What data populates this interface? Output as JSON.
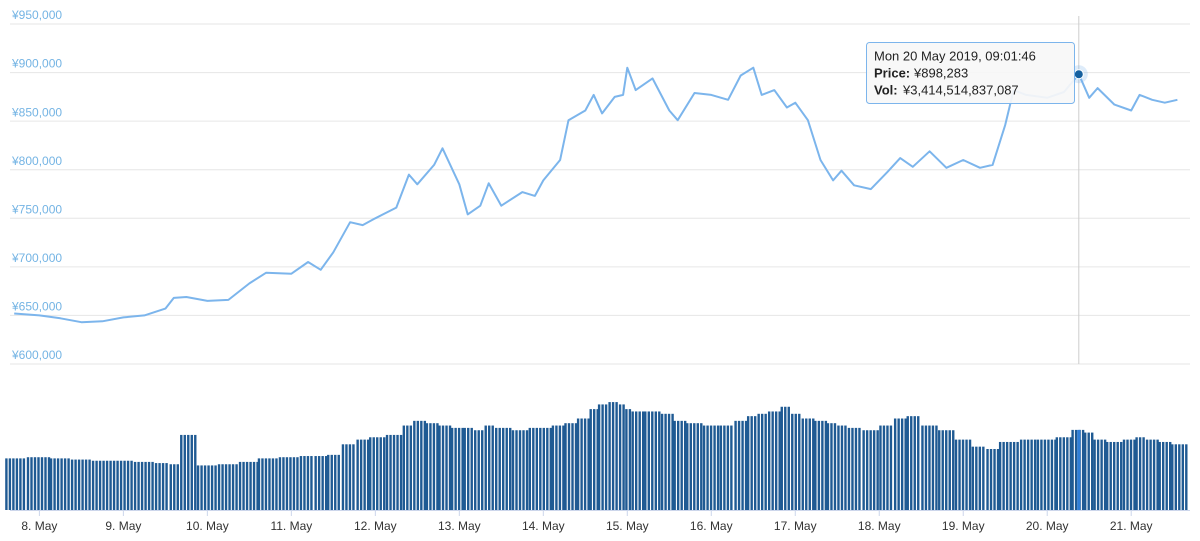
{
  "chart_data": {
    "type": "line",
    "x": [
      7.7,
      8.0,
      8.25,
      8.5,
      8.75,
      9.0,
      9.25,
      9.5,
      9.6,
      9.75,
      10.0,
      10.25,
      10.5,
      10.7,
      11.0,
      11.2,
      11.35,
      11.5,
      11.7,
      11.85,
      12.0,
      12.25,
      12.4,
      12.5,
      12.7,
      12.8,
      13.0,
      13.1,
      13.25,
      13.35,
      13.5,
      13.75,
      13.9,
      14.0,
      14.2,
      14.3,
      14.5,
      14.6,
      14.7,
      14.85,
      14.95,
      15.0,
      15.1,
      15.3,
      15.5,
      15.6,
      15.8,
      16.0,
      16.2,
      16.35,
      16.5,
      16.6,
      16.75,
      16.9,
      17.0,
      17.15,
      17.3,
      17.45,
      17.55,
      17.7,
      17.9,
      18.1,
      18.25,
      18.4,
      18.6,
      18.8,
      19.0,
      19.2,
      19.35,
      19.5,
      19.6,
      19.75,
      20.0,
      20.2,
      20.376,
      20.5,
      20.6,
      20.8,
      21.0,
      21.1,
      21.25,
      21.4,
      21.55
    ],
    "series": [
      {
        "name": "Price",
        "color": "#7cb5ec",
        "values": [
          652000,
          650000,
          647000,
          643000,
          644000,
          648000,
          650000,
          657000,
          668000,
          669000,
          665000,
          666000,
          683000,
          694000,
          693000,
          705000,
          697000,
          715000,
          746000,
          743000,
          750000,
          761000,
          795000,
          785000,
          805000,
          822000,
          785000,
          754000,
          763000,
          786000,
          763000,
          777000,
          773000,
          789000,
          810000,
          851000,
          861000,
          877000,
          858000,
          875000,
          877000,
          905000,
          882000,
          894000,
          861000,
          851000,
          879000,
          877000,
          872000,
          897000,
          905000,
          877000,
          882000,
          864000,
          869000,
          851000,
          810000,
          789000,
          799000,
          784000,
          780000,
          798000,
          812000,
          803000,
          819000,
          802000,
          810000,
          802000,
          805000,
          846000,
          882000,
          877000,
          874000,
          880000,
          898283,
          874000,
          884000,
          867000,
          861000,
          877000,
          872000,
          869000,
          872000
        ]
      },
      {
        "name": "Vol",
        "color": "#1f5a93",
        "axis": "y2",
        "values": [
          2200000000000.0,
          2250000000000.0,
          2200000000000.0,
          2150000000000.0,
          2100000000000.0,
          2100000000000.0,
          2050000000000.0,
          2000000000000.0,
          1950000000000.0,
          3200000000000.0,
          1900000000000.0,
          1950000000000.0,
          2050000000000.0,
          2200000000000.0,
          2250000000000.0,
          2300000000000.0,
          2300000000000.0,
          2350000000000.0,
          2800000000000.0,
          3000000000000.0,
          3100000000000.0,
          3200000000000.0,
          3600000000000.0,
          3800000000000.0,
          3700000000000.0,
          3600000000000.0,
          3500000000000.0,
          3500000000000.0,
          3400000000000.0,
          3600000000000.0,
          3500000000000.0,
          3400000000000.0,
          3500000000000.0,
          3500000000000.0,
          3600000000000.0,
          3700000000000.0,
          3900000000000.0,
          4300000000000.0,
          4500000000000.0,
          4600000000000.0,
          4500000000000.0,
          4300000000000.0,
          4200000000000.0,
          4200000000000.0,
          4100000000000.0,
          3800000000000.0,
          3700000000000.0,
          3600000000000.0,
          3600000000000.0,
          3800000000000.0,
          4000000000000.0,
          4100000000000.0,
          4200000000000.0,
          4400000000000.0,
          4100000000000.0,
          3900000000000.0,
          3800000000000.0,
          3700000000000.0,
          3600000000000.0,
          3500000000000.0,
          3400000000000.0,
          3600000000000.0,
          3900000000000.0,
          4000000000000.0,
          3600000000000.0,
          3400000000000.0,
          3000000000000.0,
          2700000000000.0,
          2600000000000.0,
          2900000000000.0,
          2900000000000.0,
          3000000000000.0,
          3000000000000.0,
          3100000000000.0,
          3414514837087,
          3300000000000.0,
          3000000000000.0,
          2900000000000.0,
          3000000000000.0,
          3100000000000.0,
          3000000000000.0,
          2900000000000.0,
          2800000000000.0
        ]
      }
    ],
    "xlim": [
      7.65,
      21.7
    ],
    "xticks": [
      {
        "value": 8,
        "label": "8. May"
      },
      {
        "value": 9,
        "label": "9. May"
      },
      {
        "value": 10,
        "label": "10. May"
      },
      {
        "value": 11,
        "label": "11. May"
      },
      {
        "value": 12,
        "label": "12. May"
      },
      {
        "value": 13,
        "label": "13. May"
      },
      {
        "value": 14,
        "label": "14. May"
      },
      {
        "value": 15,
        "label": "15. May"
      },
      {
        "value": 16,
        "label": "16. May"
      },
      {
        "value": 17,
        "label": "17. May"
      },
      {
        "value": 18,
        "label": "18. May"
      },
      {
        "value": 19,
        "label": "19. May"
      },
      {
        "value": 20,
        "label": "20. May"
      },
      {
        "value": 21,
        "label": "21. May"
      }
    ],
    "ylim": [
      600000,
      950000
    ],
    "yticks": [
      {
        "value": 600000,
        "label": "¥600,000"
      },
      {
        "value": 650000,
        "label": "¥650,000"
      },
      {
        "value": 700000,
        "label": "¥700,000"
      },
      {
        "value": 750000,
        "label": "¥750,000"
      },
      {
        "value": 800000,
        "label": "¥800,000"
      },
      {
        "value": 850000,
        "label": "¥850,000"
      },
      {
        "value": 900000,
        "label": "¥900,000"
      },
      {
        "value": 950000,
        "label": "¥950,000"
      }
    ],
    "y2lim": [
      0,
      5200000000000
    ],
    "grid": true,
    "tooltip": {
      "x": 20.376,
      "title": "Mon 20 May 2019, 09:01:46",
      "price_label": "Price:",
      "price": "¥898,283",
      "vol_label": "Vol:",
      "vol": "¥3,414,514,837,087"
    }
  }
}
